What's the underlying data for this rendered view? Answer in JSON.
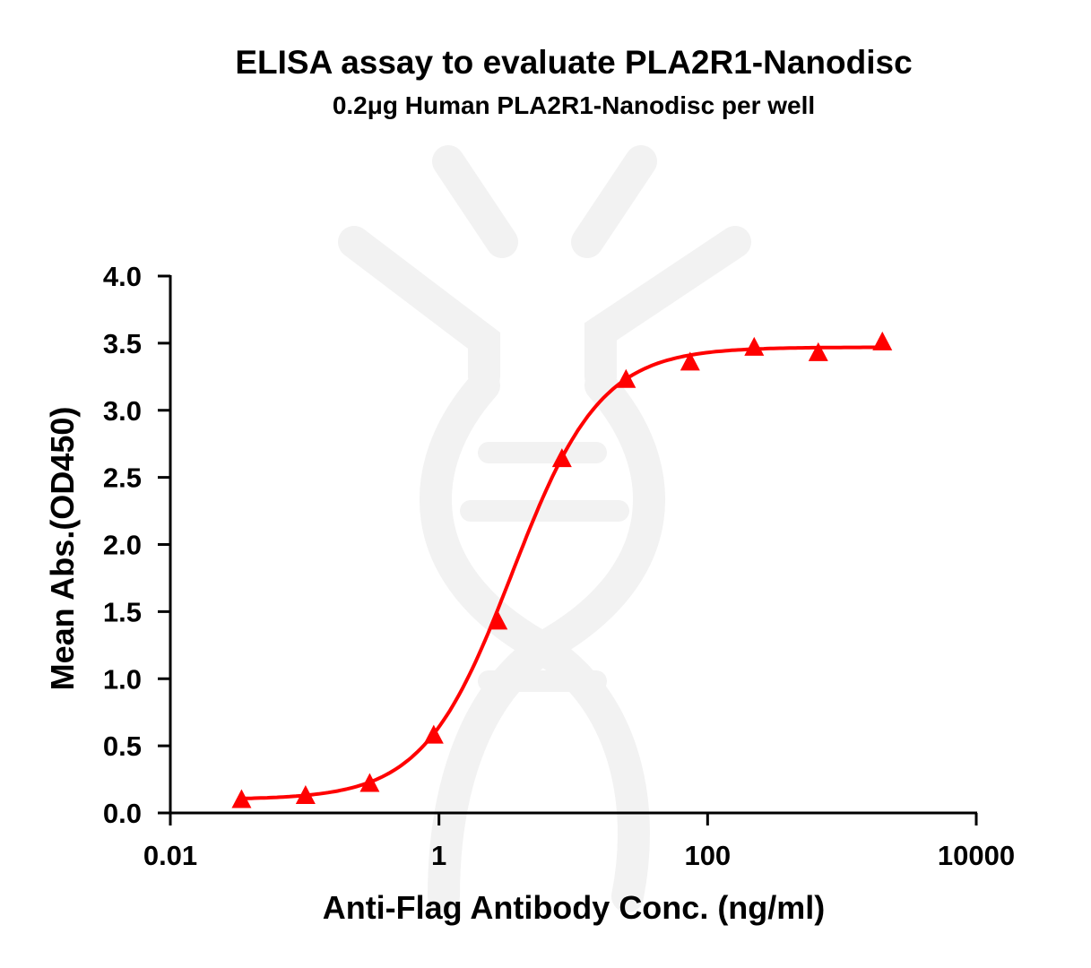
{
  "chart_data": {
    "type": "scatter",
    "title": "ELISA assay to evaluate PLA2R1-Nanodisc",
    "subtitle": "0.2μg Human PLA2R1-Nanodisc per well",
    "xlabel": "Anti-Flag Antibody Conc. (ng/ml)",
    "ylabel": "Mean Abs.(OD450)",
    "x_scale": "log",
    "xlim": [
      0.01,
      10000
    ],
    "ylim": [
      0,
      4.0
    ],
    "x_ticks": [
      0.01,
      1,
      100,
      10000
    ],
    "x_tick_labels": [
      "0.01",
      "1",
      "100",
      "10000"
    ],
    "y_ticks": [
      0,
      0.5,
      1.0,
      1.5,
      2.0,
      2.5,
      3.0,
      3.5,
      4.0
    ],
    "y_tick_labels": [
      "0.0",
      "0.5",
      "1.0",
      "1.5",
      "2.0",
      "2.5",
      "3.0",
      "3.5",
      "4.0"
    ],
    "grid": false,
    "marker": "triangle",
    "color": "#ff0000",
    "series": [
      {
        "x": [
          0.0339,
          0.1016,
          0.305,
          0.914,
          2.74,
          8.23,
          24.69,
          74.07,
          222.2,
          666.7,
          2000
        ],
        "y": [
          0.09,
          0.12,
          0.21,
          0.57,
          1.42,
          2.63,
          3.22,
          3.35,
          3.46,
          3.42,
          3.5
        ]
      }
    ],
    "fit": {
      "model": "4PL",
      "bottom": 0.1,
      "top": 3.47,
      "ec50": 3.5,
      "hill": 1.32
    }
  }
}
